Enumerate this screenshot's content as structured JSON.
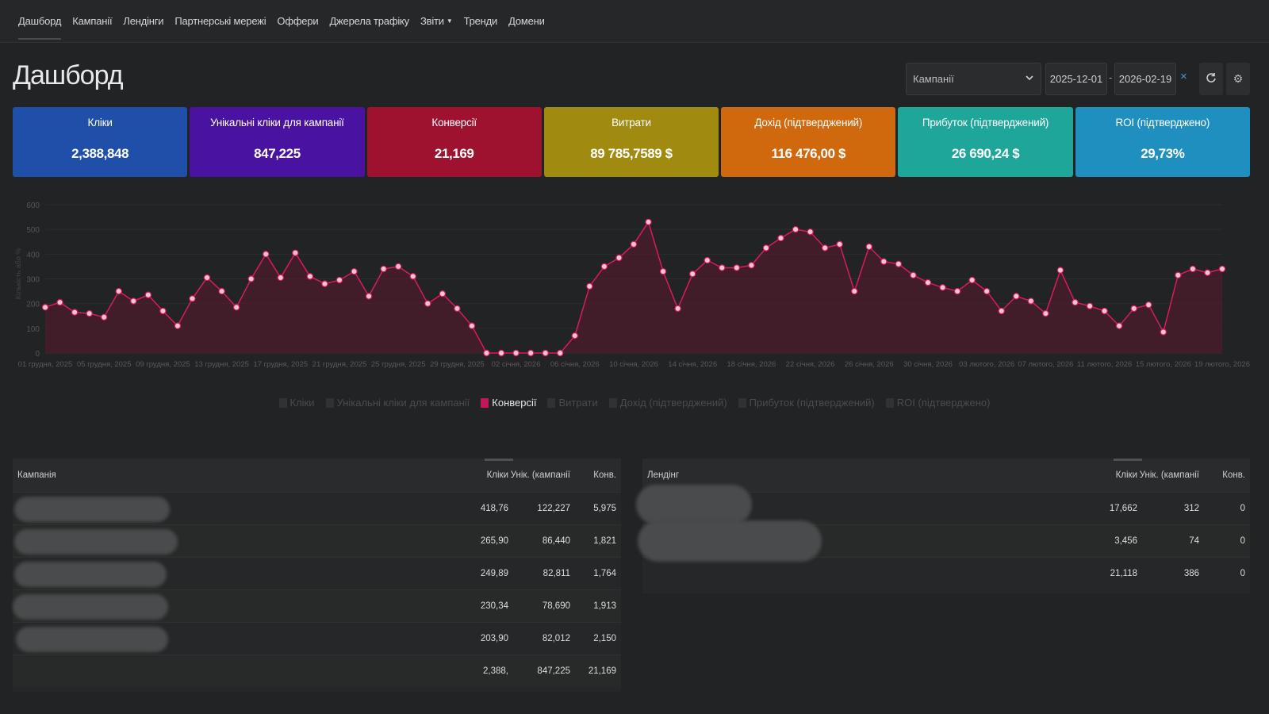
{
  "nav": {
    "items": [
      "Дашборд",
      "Кампанії",
      "Лендінги",
      "Партнерські мережі",
      "Оффери",
      "Джерела трафіку",
      "Звіти",
      "Тренди",
      "Домени"
    ]
  },
  "header": {
    "title": "Дашборд",
    "filter_select": "Кампанії",
    "date_from": "2025-12-01",
    "date_to": "2026-02-19",
    "date_sep": "-",
    "clear": "×"
  },
  "cards": [
    {
      "label": "Кліки",
      "value": "2,388,848",
      "color": "#1f4fa8"
    },
    {
      "label": "Унікальні кліки для кампанії",
      "value": "847,225",
      "color": "#4a12a0"
    },
    {
      "label": "Конверсії",
      "value": "21,169",
      "color": "#9e1230"
    },
    {
      "label": "Витрати",
      "value": "89 785,7589 $",
      "color": "#a08a10"
    },
    {
      "label": "Дохід (підтверджений)",
      "value": "116 476,00 $",
      "color": "#d0680e"
    },
    {
      "label": "Прибуток (підтверджений)",
      "value": "26 690,24 $",
      "color": "#1fa69a"
    },
    {
      "label": "ROI (підтверджено)",
      "value": "29,73%",
      "color": "#1f8fc0"
    }
  ],
  "chart_data": {
    "type": "area",
    "ylabel": "Кількість або %",
    "ylim": [
      0,
      600
    ],
    "yticks": [
      0,
      100,
      200,
      300,
      400,
      500,
      600
    ],
    "xtick_labels": [
      "01 грудня, 2025",
      "05 грудня, 2025",
      "09 грудня, 2025",
      "13 грудня, 2025",
      "17 грудня, 2025",
      "21 грудня, 2025",
      "25 грудня, 2025",
      "29 грудня, 2025",
      "02 січня, 2026",
      "06 січня, 2026",
      "10 січня, 2026",
      "14 січня, 2026",
      "18 січня, 2026",
      "22 січня, 2026",
      "26 січня, 2026",
      "30 січня, 2026",
      "03 лютого, 2026",
      "07 лютого, 2026",
      "11 лютого, 2026",
      "15 лютого, 2026",
      "19 лютого, 2026"
    ],
    "series": [
      {
        "name": "Конверсії",
        "color": "#c2185b",
        "values": [
          185,
          205,
          165,
          160,
          145,
          250,
          210,
          235,
          170,
          110,
          220,
          305,
          250,
          185,
          300,
          400,
          305,
          405,
          310,
          280,
          295,
          330,
          230,
          340,
          350,
          310,
          200,
          240,
          180,
          110,
          0,
          0,
          0,
          0,
          0,
          0,
          70,
          270,
          350,
          385,
          440,
          530,
          330,
          180,
          320,
          375,
          345,
          345,
          355,
          425,
          465,
          500,
          490,
          425,
          440,
          250,
          430,
          370,
          360,
          315,
          285,
          265,
          250,
          295,
          250,
          170,
          230,
          210,
          160,
          335,
          205,
          190,
          170,
          110,
          180,
          195,
          85,
          315,
          340,
          325,
          340
        ]
      }
    ],
    "legend": [
      "Кліки",
      "Унікальні кліки для кампанії",
      "Конверсії",
      "Витрати",
      "Дохід (підтверджений)",
      "Прибуток (підтверджений)",
      "ROI (підтверджено)"
    ],
    "legend_colors": [
      "#1f4fa8",
      "#4a12a0",
      "#c2185b",
      "#a08a10",
      "#d0680e",
      "#1fa69a",
      "#1f8fc0"
    ],
    "active_series": "Конверсії",
    "legend_placement": "bottom-center"
  },
  "campaigns_table": {
    "headers": [
      "Кампанія",
      "Кліки",
      "Унік. (кампанії",
      "Конв."
    ],
    "rows": [
      {
        "clicks": "418,76",
        "unique": "122,227",
        "conv": "5,975"
      },
      {
        "clicks": "265,90",
        "unique": "86,440",
        "conv": "1,821"
      },
      {
        "clicks": "249,89",
        "unique": "82,811",
        "conv": "1,764"
      },
      {
        "clicks": "230,34",
        "unique": "78,690",
        "conv": "1,913"
      },
      {
        "clicks": "203,90",
        "unique": "82,012",
        "conv": "2,150"
      }
    ],
    "total": {
      "clicks": "2,388,",
      "unique": "847,225",
      "conv": "21,169"
    }
  },
  "landings_table": {
    "headers": [
      "Лендінг",
      "Кліки",
      "Унік. (кампанії",
      "Конв."
    ],
    "rows": [
      {
        "clicks": "17,662",
        "unique": "312",
        "conv": "0"
      },
      {
        "clicks": "3,456",
        "unique": "74",
        "conv": "0"
      }
    ],
    "total": {
      "clicks": "21,118",
      "unique": "386",
      "conv": "0"
    }
  }
}
